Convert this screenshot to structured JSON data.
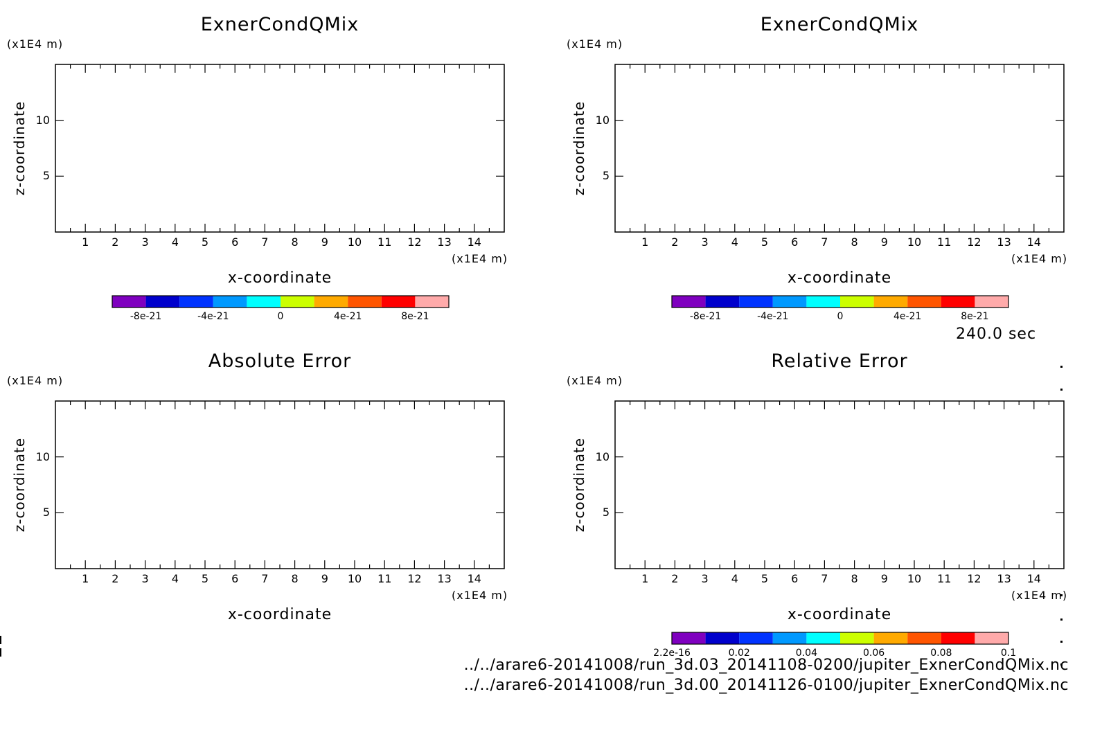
{
  "chart_data": [
    {
      "type": "heatmap",
      "title": "ExnerCondQMix",
      "xlabel": "x-coordinate",
      "ylabel": "z-coordinate",
      "x_unit": "(x1E4 m)",
      "y_unit": "(x1E4 m)",
      "xlim": [
        0,
        15
      ],
      "ylim": [
        0,
        15
      ],
      "xticks": [
        1,
        2,
        3,
        4,
        5,
        6,
        7,
        8,
        9,
        10,
        11,
        12,
        13,
        14
      ],
      "yticks": [
        5,
        10
      ],
      "values": [],
      "colorbar": {
        "colors": [
          "#7f00bf",
          "#0000cc",
          "#0033ff",
          "#0099ff",
          "#00ffff",
          "#ccff00",
          "#ffaa00",
          "#ff5500",
          "#ff0000",
          "#ffaaaa"
        ],
        "labels": [
          "-8e-21",
          "-4e-21",
          "0",
          "4e-21",
          "8e-21"
        ],
        "range": [
          -1e-20,
          1e-20
        ]
      }
    },
    {
      "type": "heatmap",
      "title": "ExnerCondQMix",
      "xlabel": "x-coordinate",
      "ylabel": "z-coordinate",
      "x_unit": "(x1E4 m)",
      "y_unit": "(x1E4 m)",
      "xlim": [
        0,
        15
      ],
      "ylim": [
        0,
        15
      ],
      "xticks": [
        1,
        2,
        3,
        4,
        5,
        6,
        7,
        8,
        9,
        10,
        11,
        12,
        13,
        14
      ],
      "yticks": [
        5,
        10
      ],
      "values": [],
      "colorbar": {
        "colors": [
          "#7f00bf",
          "#0000cc",
          "#0033ff",
          "#0099ff",
          "#00ffff",
          "#ccff00",
          "#ffaa00",
          "#ff5500",
          "#ff0000",
          "#ffaaaa"
        ],
        "labels": [
          "-8e-21",
          "-4e-21",
          "0",
          "4e-21",
          "8e-21"
        ],
        "range": [
          -1e-20,
          1e-20
        ]
      }
    },
    {
      "type": "heatmap",
      "title": "Absolute Error",
      "xlabel": "x-coordinate",
      "ylabel": "z-coordinate",
      "x_unit": "(x1E4 m)",
      "y_unit": "(x1E4 m)",
      "xlim": [
        0,
        15
      ],
      "ylim": [
        0,
        15
      ],
      "xticks": [
        1,
        2,
        3,
        4,
        5,
        6,
        7,
        8,
        9,
        10,
        11,
        12,
        13,
        14
      ],
      "yticks": [
        5,
        10
      ],
      "values": []
    },
    {
      "type": "heatmap",
      "title": "Relative Error",
      "xlabel": "x-coordinate",
      "ylabel": "z-coordinate",
      "x_unit": "(x1E4 m)",
      "y_unit": "(x1E4 m)",
      "xlim": [
        0,
        15
      ],
      "ylim": [
        0,
        15
      ],
      "xticks": [
        1,
        2,
        3,
        4,
        5,
        6,
        7,
        8,
        9,
        10,
        11,
        12,
        13,
        14
      ],
      "yticks": [
        5,
        10
      ],
      "values": [],
      "colorbar": {
        "colors": [
          "#7f00bf",
          "#0000cc",
          "#0033ff",
          "#0099ff",
          "#00ffff",
          "#ccff00",
          "#ffaa00",
          "#ff5500",
          "#ff0000",
          "#ffaaaa"
        ],
        "labels": [
          "2.2e-16",
          "0.02",
          "0.04",
          "0.06",
          "0.08",
          "0.1"
        ],
        "range": [
          0,
          0.1
        ]
      }
    }
  ],
  "time_label": "240.0 sec",
  "files": [
    "../../arare6-20141008/run_3d.03_20141108-0200/jupiter_ExnerCondQMix.nc",
    "../../arare6-20141008/run_3d.00_20141126-0100/jupiter_ExnerCondQMix.nc"
  ]
}
